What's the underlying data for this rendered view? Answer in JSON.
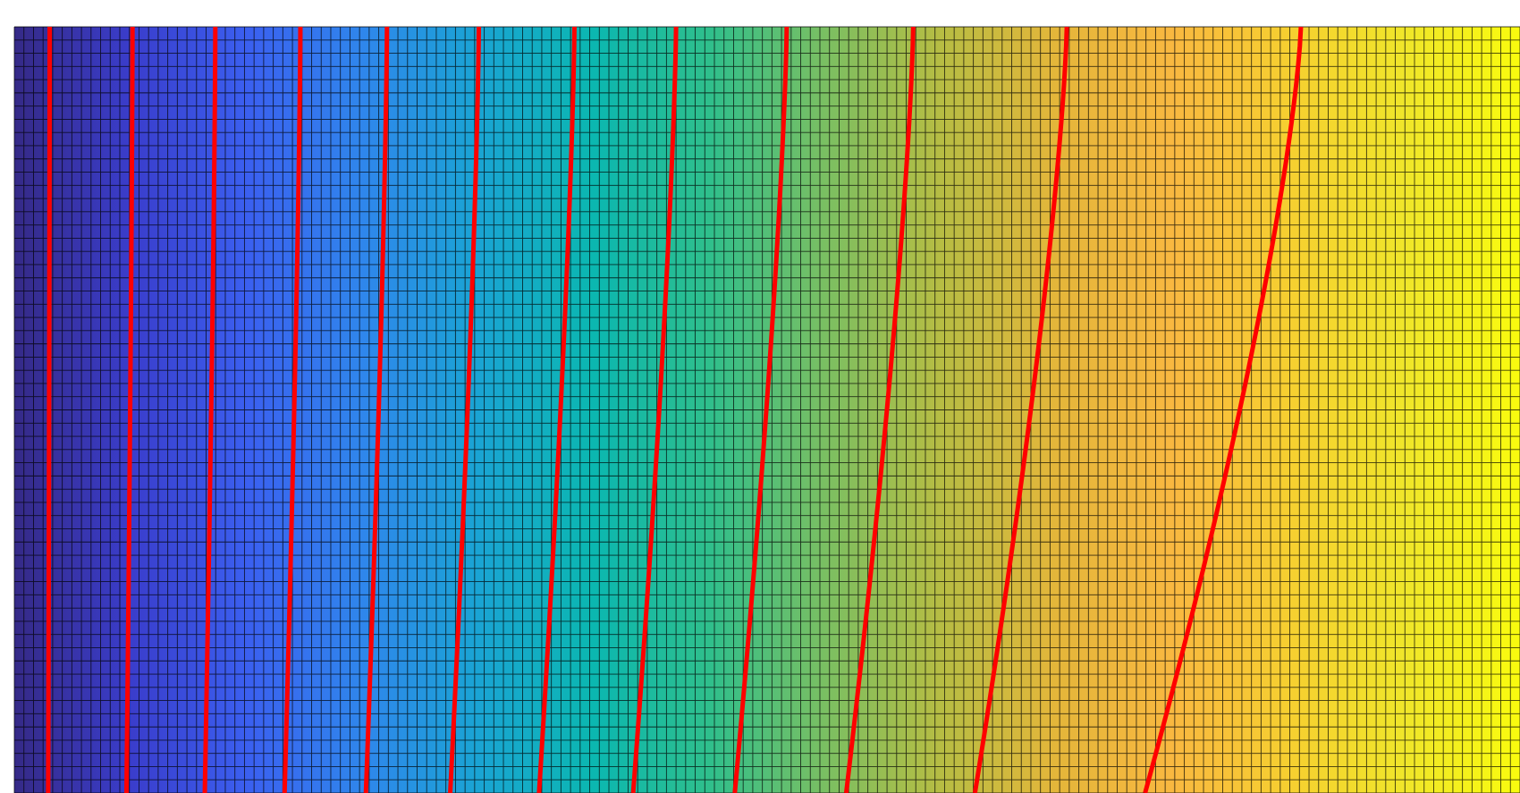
{
  "chart_data": {
    "type": "heatmap",
    "description_free": true,
    "colormap": {
      "name": "parula",
      "stops": [
        "#352a87",
        "#3a3dcb",
        "#3b5ff0",
        "#2f86ec",
        "#1aa4d4",
        "#0bb7b0",
        "#2fbf8c",
        "#7abf62",
        "#b7bd43",
        "#e4b63a",
        "#f9b840",
        "#f6cf30",
        "#f0e62a",
        "#f9fb0e"
      ]
    },
    "mesh": {
      "columns": 157,
      "rows": 58,
      "grid_color": "#000000"
    },
    "contours": {
      "color": "#ff0000",
      "lines": [
        {
          "top": 0.0235,
          "bottom": 0.0225
        },
        {
          "top": 0.0785,
          "bottom": 0.0745
        },
        {
          "top": 0.1335,
          "bottom": 0.1265
        },
        {
          "top": 0.19,
          "bottom": 0.1795
        },
        {
          "top": 0.2475,
          "bottom": 0.2335
        },
        {
          "top": 0.3085,
          "bottom": 0.2895
        },
        {
          "top": 0.372,
          "bottom": 0.3485
        },
        {
          "top": 0.4395,
          "bottom": 0.411
        },
        {
          "top": 0.513,
          "bottom": 0.4785
        },
        {
          "top": 0.597,
          "bottom": 0.5525
        },
        {
          "top": 0.699,
          "bottom": 0.638
        },
        {
          "top": 0.8545,
          "bottom": 0.751
        }
      ]
    },
    "title": "",
    "xlabel": "",
    "ylabel": "",
    "grid": true,
    "legend": "none"
  }
}
